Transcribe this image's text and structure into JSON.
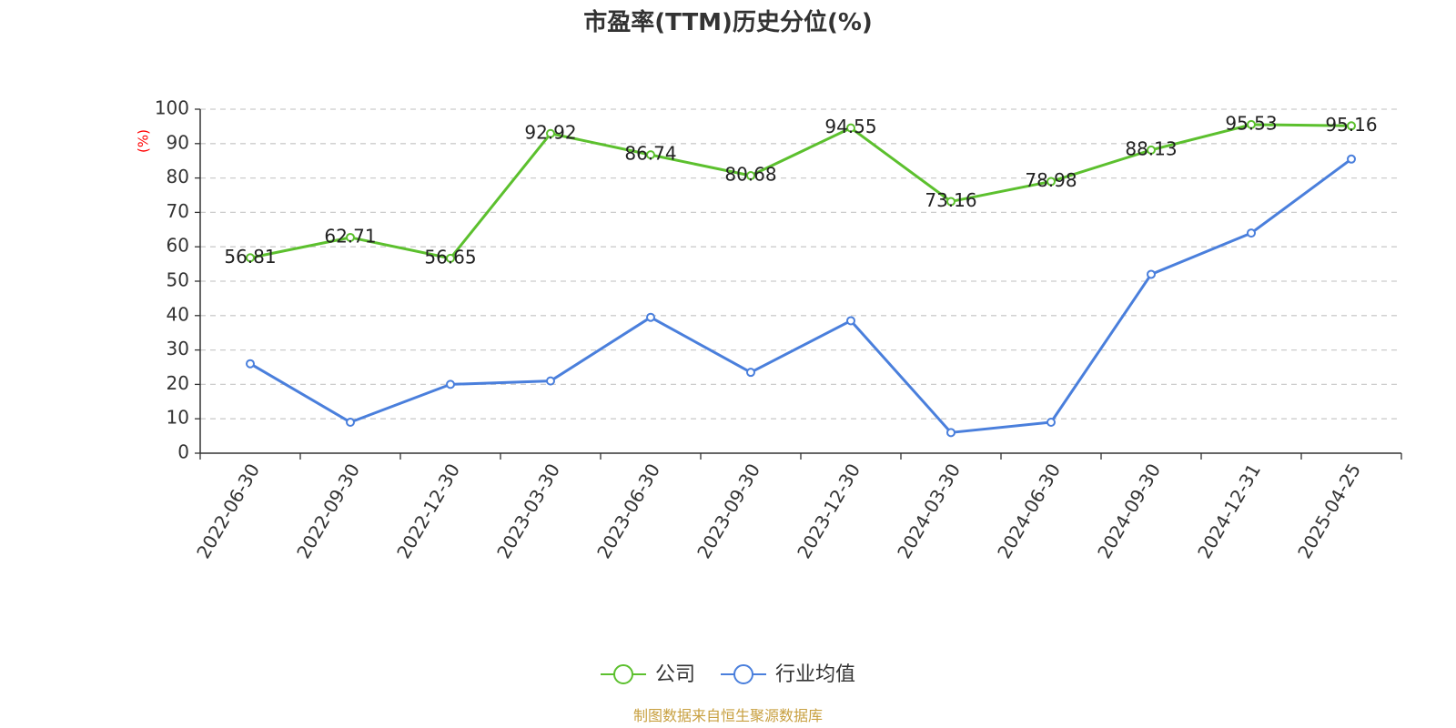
{
  "chart_data": {
    "type": "line",
    "title": "市盈率(TTM)历史分位(%)",
    "ylabel": "(%)",
    "xlabel": "",
    "ylim": [
      0,
      100
    ],
    "yticks": [
      0,
      10,
      20,
      30,
      40,
      50,
      60,
      70,
      80,
      90,
      100
    ],
    "grid": "horizontal dashed",
    "legend_position": "bottom-center",
    "categories": [
      "2022-06-30",
      "2022-09-30",
      "2022-12-30",
      "2023-03-30",
      "2023-06-30",
      "2023-09-30",
      "2023-12-30",
      "2024-03-30",
      "2024-06-30",
      "2024-09-30",
      "2024-12-31",
      "2025-04-25"
    ],
    "series": [
      {
        "name": "公司",
        "color": "#5cc02e",
        "values": [
          56.81,
          62.71,
          56.65,
          92.92,
          86.74,
          80.68,
          94.55,
          73.16,
          78.98,
          88.13,
          95.53,
          95.16
        ],
        "labels": [
          "56.81",
          "62.71",
          "56.65",
          "92.92",
          "86.74",
          "80.68",
          "94.55",
          "73.16",
          "78.98",
          "88.13",
          "95.53",
          "95.16"
        ]
      },
      {
        "name": "行业均值",
        "color": "#4a7fdc",
        "values": [
          26,
          9,
          20,
          21,
          39.5,
          23.5,
          38.5,
          6,
          9,
          52,
          64,
          85.5
        ]
      }
    ]
  },
  "source_note": "制图数据来自恒生聚源数据库"
}
